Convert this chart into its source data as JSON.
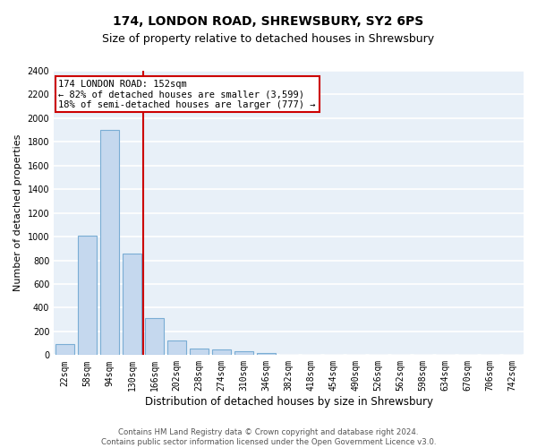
{
  "title": "174, LONDON ROAD, SHREWSBURY, SY2 6PS",
  "subtitle": "Size of property relative to detached houses in Shrewsbury",
  "xlabel": "Distribution of detached houses by size in Shrewsbury",
  "ylabel": "Number of detached properties",
  "categories": [
    "22sqm",
    "58sqm",
    "94sqm",
    "130sqm",
    "166sqm",
    "202sqm",
    "238sqm",
    "274sqm",
    "310sqm",
    "346sqm",
    "382sqm",
    "418sqm",
    "454sqm",
    "490sqm",
    "526sqm",
    "562sqm",
    "598sqm",
    "634sqm",
    "670sqm",
    "706sqm",
    "742sqm"
  ],
  "values": [
    95,
    1010,
    1900,
    860,
    315,
    120,
    55,
    50,
    30,
    20,
    0,
    0,
    0,
    0,
    0,
    0,
    0,
    0,
    0,
    0,
    0
  ],
  "bar_color": "#c5d8ee",
  "bar_edge_color": "#7aadd4",
  "vline_x": 3.5,
  "vline_color": "#cc0000",
  "annotation_text": "174 LONDON ROAD: 152sqm\n← 82% of detached houses are smaller (3,599)\n18% of semi-detached houses are larger (777) →",
  "annotation_box_color": "#cc0000",
  "ylim": [
    0,
    2400
  ],
  "yticks": [
    0,
    200,
    400,
    600,
    800,
    1000,
    1200,
    1400,
    1600,
    1800,
    2000,
    2200,
    2400
  ],
  "bg_color": "#e8f0f8",
  "grid_color": "#ffffff",
  "footer_line1": "Contains HM Land Registry data © Crown copyright and database right 2024.",
  "footer_line2": "Contains public sector information licensed under the Open Government Licence v3.0.",
  "title_fontsize": 10,
  "subtitle_fontsize": 9,
  "xlabel_fontsize": 8.5,
  "ylabel_fontsize": 8,
  "tick_fontsize": 7,
  "annotation_fontsize": 7.5
}
